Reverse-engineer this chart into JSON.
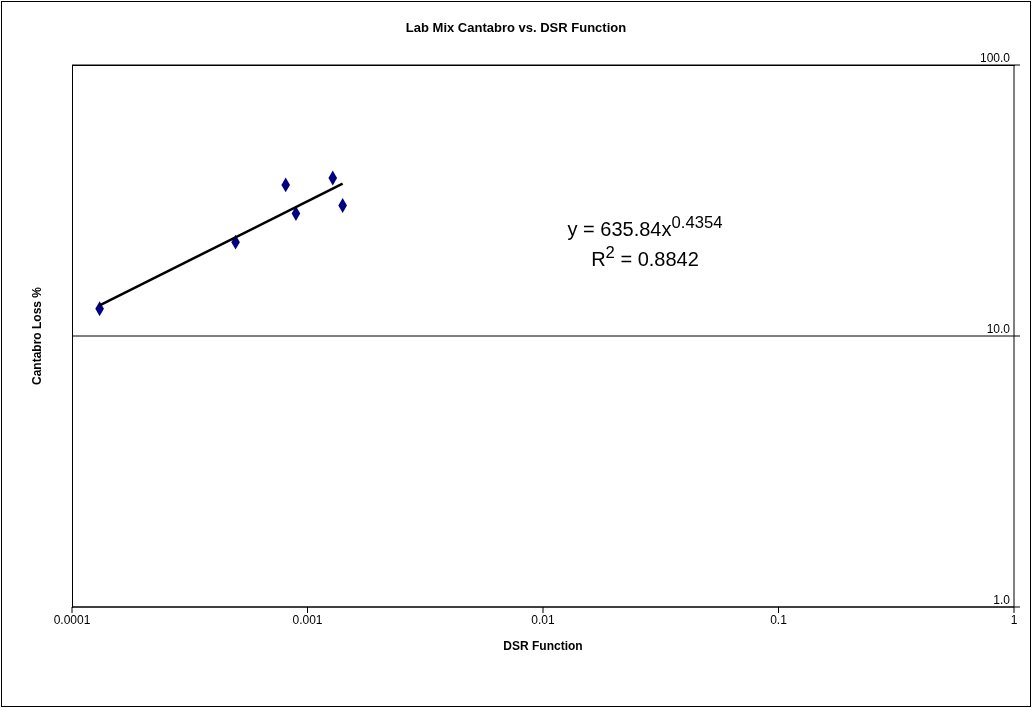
{
  "chart_data": {
    "type": "scatter",
    "title": "Lab Mix Cantabro vs. DSR Function",
    "xlabel": "DSR Function",
    "ylabel": "Cantabro Loss %",
    "log": "xy",
    "grid": "y",
    "marker": "diamond",
    "xlim": [
      0.0001,
      1
    ],
    "xticks": [
      0.0001,
      0.001,
      0.01,
      0.1,
      1
    ],
    "ylim": [
      1,
      100
    ],
    "yticks": [
      {
        "value": 1,
        "label": "1.0"
      },
      {
        "value": 10,
        "label": "10.0"
      },
      {
        "value": 100,
        "label": "100.0"
      }
    ],
    "series": [
      {
        "color": "#000080",
        "x": [
          0.000131,
          0.000495,
          0.000808,
          0.000893,
          0.00128,
          0.00141
        ],
        "values": [
          12.6,
          22.2,
          36.1,
          28.3,
          38.3,
          30.3
        ]
      },
      {
        "type": "line",
        "color": "#000000",
        "marker": "none",
        "line_style": "solid",
        "x": [
          0.000131,
          0.00141
        ],
        "values": [
          12.97,
          36.5
        ]
      }
    ],
    "annotations": [
      "y = 635.84x$^{0.4354}$",
      "R$^{2}$ = 0.8842"
    ]
  }
}
